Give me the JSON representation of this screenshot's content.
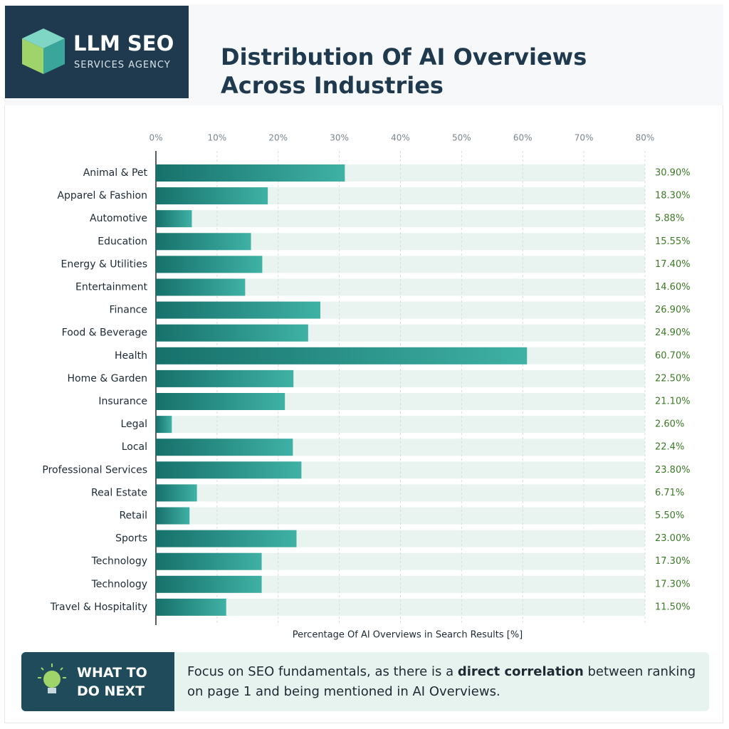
{
  "header": {
    "logo_title": "LLM SEO",
    "logo_subtitle": "SERVICES AGENCY"
  },
  "chart_data": {
    "type": "bar",
    "orientation": "horizontal",
    "title": "Distribution Of AI Overviews Across Industries",
    "x_label": "Percentage Of AI Overviews in Search Results [%]",
    "categories": [
      "Animal & Pet",
      "Apparel & Fashion",
      "Automotive",
      "Education",
      "Energy & Utilities",
      "Entertainment",
      "Finance",
      "Food & Beverage",
      "Health",
      "Home & Garden",
      "Insurance",
      "Legal",
      "Local",
      "Professional Services",
      "Real Estate",
      "Retail",
      "Sports",
      "Technology",
      "Technology",
      "Travel & Hospitality"
    ],
    "values": [
      30.9,
      18.3,
      5.88,
      15.55,
      17.4,
      14.6,
      26.9,
      24.9,
      60.7,
      22.5,
      21.1,
      2.6,
      22.4,
      23.8,
      6.71,
      5.5,
      23.0,
      17.3,
      17.3,
      11.5
    ],
    "value_labels": [
      "30.90%",
      "18.30%",
      "5.88%",
      "15.55%",
      "17.40%",
      "14.60%",
      "26.90%",
      "24.90%",
      "60.70%",
      "22.50%",
      "21.10%",
      "2.60%",
      "22.4%",
      "23.80%",
      "6.71%",
      "5.50%",
      "23.00%",
      "17.30%",
      "17.30%",
      "11.50%"
    ],
    "color": "#1f8a80",
    "xlim": [
      0,
      80
    ],
    "xticks": [
      {
        "value": 0,
        "label": "0%"
      },
      {
        "value": 10,
        "label": "10%"
      },
      {
        "value": 20,
        "label": "20%"
      },
      {
        "value": 30,
        "label": "30%"
      },
      {
        "value": 40,
        "label": "40%"
      },
      {
        "value": 50,
        "label": "50%"
      },
      {
        "value": 60,
        "label": "60%"
      },
      {
        "value": 70,
        "label": "70%"
      },
      {
        "value": 80,
        "label": "80%"
      }
    ],
    "grid": true
  },
  "callout": {
    "heading": "WHAT TO DO NEXT",
    "message": [
      "Focus on SEO fundamentals, as there is a ",
      "direct correlation",
      " between ranking on page 1 and being mentioned in AI Overviews."
    ]
  }
}
